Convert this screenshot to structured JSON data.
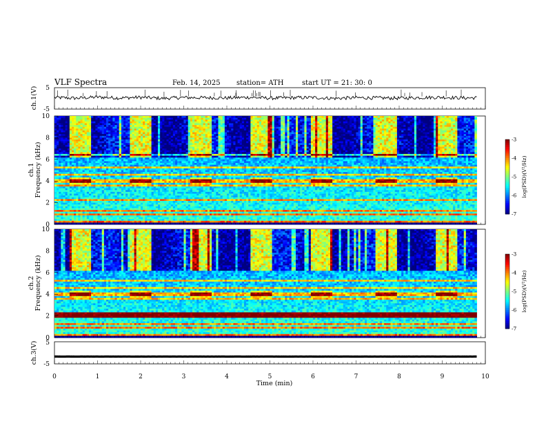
{
  "header": {
    "title": "VLF  Spectra",
    "date": "Feb. 14, 2025",
    "station": "station= ATH",
    "start": "start  UT  =    21: 30: 0"
  },
  "chart_data": [
    {
      "type": "line",
      "ylabel": "ch.1(V)",
      "xlim": [
        0,
        10
      ],
      "ylim": [
        -5,
        5
      ],
      "yticks": [
        "5",
        "-5"
      ],
      "series": [
        {
          "x": [
            0,
            0.5,
            1,
            1.5,
            2,
            2.5,
            3,
            3.5,
            4,
            4.5,
            5,
            5.5,
            6,
            6.5,
            7,
            7.5,
            8,
            8.5,
            9,
            9.5,
            9.8
          ],
          "values": [
            0.4,
            0.1,
            0.6,
            0.2,
            0.5,
            0.0,
            0.4,
            0.3,
            0.2,
            0.5,
            0.1,
            0.3,
            0.4,
            0.0,
            0.3,
            0.2,
            0.1,
            0.4,
            0.5,
            0.2,
            0.3
          ]
        }
      ]
    },
    {
      "type": "heatmap",
      "ylabel_top": "ch.1",
      "ylabel": "Frequency  (kHz)",
      "xlim": [
        0,
        9.8
      ],
      "ylim": [
        0,
        10
      ],
      "yticks": [
        "0",
        "2",
        "4",
        "6",
        "8",
        "10"
      ],
      "colorbar": {
        "label": "log(PSD)(V²/Hz)",
        "range": [
          -7,
          -3
        ],
        "ticks": [
          "-3",
          "-4",
          "-5",
          "-6",
          "-7"
        ]
      },
      "bursts": [
        0.4,
        1.8,
        3.2,
        4.6,
        6.0,
        7.5,
        8.9
      ],
      "bands_khz": [
        0.3,
        0.9,
        1.3,
        2.3,
        3.6,
        4.0,
        4.6,
        5.3,
        6.4
      ]
    },
    {
      "type": "heatmap",
      "ylabel_top": "ch.2",
      "ylabel": "Frequency  (kHz)",
      "xlim": [
        0,
        9.8
      ],
      "ylim": [
        0,
        10
      ],
      "yticks": [
        "0",
        "2",
        "4",
        "6",
        "8",
        "10"
      ],
      "colorbar": {
        "label": "log(PSD)(V²/Hz)",
        "range": [
          -7,
          -3
        ],
        "ticks": [
          "-3",
          "-4",
          "-5",
          "-6",
          "-7"
        ]
      },
      "bursts": [
        0.4,
        1.8,
        3.2,
        4.6,
        6.0,
        7.5,
        8.9
      ],
      "bands_khz": [
        0.3,
        0.9,
        1.3,
        2.0,
        2.3,
        3.6,
        4.0,
        4.6,
        5.3
      ]
    },
    {
      "type": "line",
      "ylabel": "ch.3(V)",
      "xlim": [
        0,
        10
      ],
      "ylim": [
        -5,
        5
      ],
      "yticks": [
        "5",
        "-5"
      ],
      "series": [
        {
          "x": [
            0,
            9.8
          ],
          "values": [
            -1.7,
            -1.7
          ]
        }
      ]
    }
  ],
  "xaxis": {
    "label": "Time  (min)",
    "ticks": [
      "0",
      "1",
      "2",
      "3",
      "4",
      "5",
      "6",
      "7",
      "8",
      "9",
      "10"
    ]
  }
}
